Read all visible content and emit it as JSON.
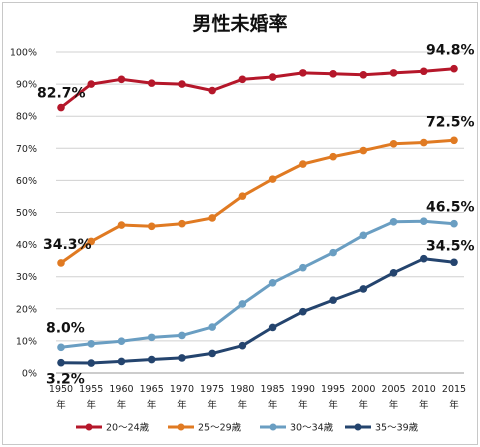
{
  "chart_data": {
    "type": "line",
    "title": "男性未婚率",
    "x": [
      1950,
      1955,
      1960,
      1965,
      1970,
      1975,
      1980,
      1985,
      1990,
      1995,
      2000,
      2005,
      2010,
      2015
    ],
    "x_tick_labels": [
      "1950",
      "1955",
      "1960",
      "1965",
      "1970",
      "1975",
      "1980",
      "1985",
      "1990",
      "1995",
      "2000",
      "2005",
      "2010",
      "2015"
    ],
    "x_tick_suffix": "年",
    "y_tick_labels": [
      "0%",
      "10%",
      "20%",
      "30%",
      "40%",
      "50%",
      "60%",
      "70%",
      "80%",
      "90%",
      "100%"
    ],
    "ylim": [
      0,
      100
    ],
    "grid": true,
    "legend_position": "bottom",
    "series": [
      {
        "name": "20～24歳",
        "color": "#b5172a",
        "values": [
          82.7,
          90.0,
          91.5,
          90.3,
          90.0,
          88.0,
          91.5,
          92.2,
          93.5,
          93.2,
          92.9,
          93.5,
          94.0,
          94.8
        ]
      },
      {
        "name": "25～29歳",
        "color": "#e07a22",
        "values": [
          34.3,
          41.0,
          46.1,
          45.7,
          46.5,
          48.3,
          55.1,
          60.4,
          65.1,
          67.4,
          69.3,
          71.4,
          71.8,
          72.5
        ]
      },
      {
        "name": "30～34歳",
        "color": "#6a9ec2",
        "values": [
          8.0,
          9.1,
          9.9,
          11.1,
          11.7,
          14.3,
          21.5,
          28.1,
          32.8,
          37.5,
          42.9,
          47.1,
          47.3,
          46.5
        ]
      },
      {
        "name": "35～39歳",
        "color": "#24446e",
        "values": [
          3.2,
          3.1,
          3.6,
          4.2,
          4.7,
          6.1,
          8.5,
          14.2,
          19.1,
          22.7,
          26.2,
          31.2,
          35.6,
          34.5
        ]
      }
    ],
    "annotations": [
      "82.7%",
      "94.8%",
      "34.3%",
      "72.5%",
      "8.0%",
      "46.5%",
      "3.2%",
      "34.5%"
    ]
  }
}
